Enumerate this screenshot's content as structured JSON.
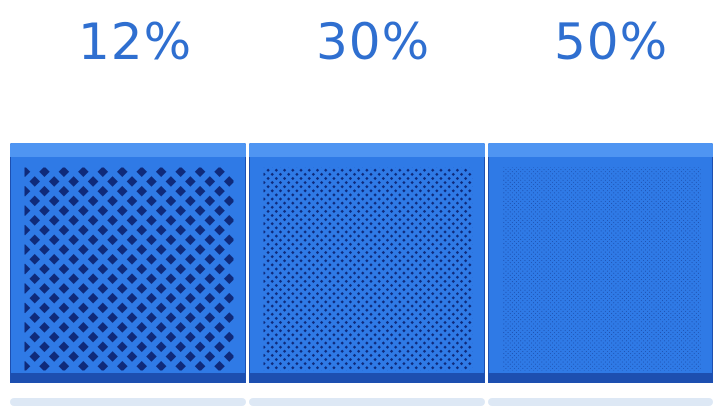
{
  "samples": [
    {
      "label": "12%",
      "infill_percent": 12,
      "pattern": "grid-diagonal",
      "grid_cells": 11,
      "line_width_ratio": 0.32
    },
    {
      "label": "30%",
      "infill_percent": 30,
      "pattern": "grid-diagonal",
      "grid_cells": 26,
      "line_width_ratio": 0.42
    },
    {
      "label": "50%",
      "infill_percent": 50,
      "pattern": "grid-diagonal",
      "grid_cells": 48,
      "line_width_ratio": 0.55
    }
  ],
  "colors": {
    "label_text": "#2f6fd0",
    "plastic_main": "#2f7ae6",
    "plastic_light": "#4f95f2",
    "plastic_dark": "#1d4fb0",
    "hole_dark": "#0f2a7a",
    "shadow": "#dde8f5"
  }
}
